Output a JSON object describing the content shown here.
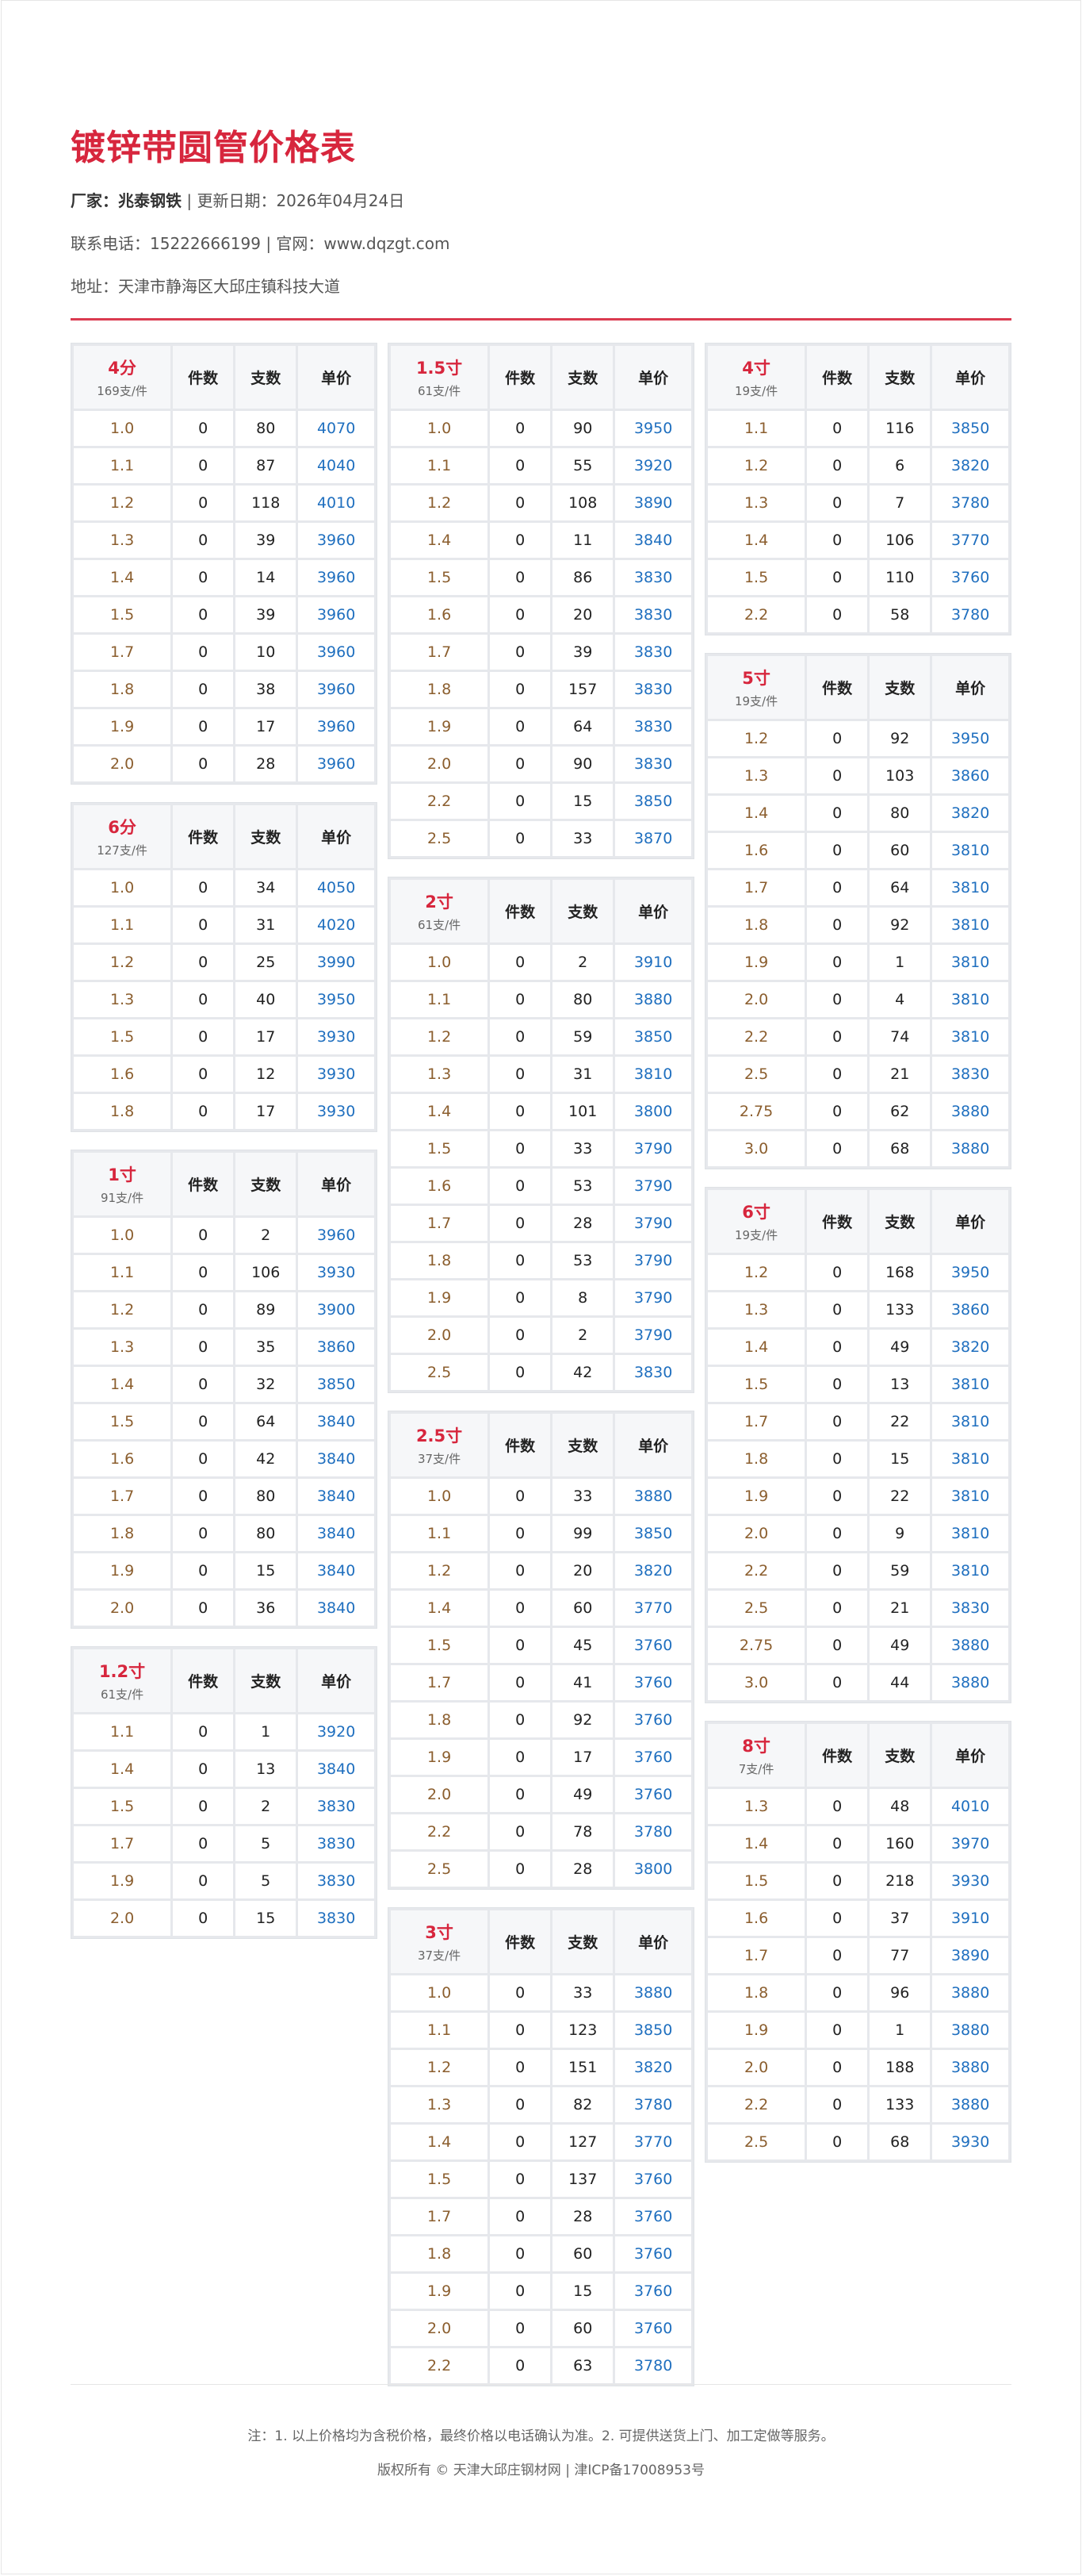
{
  "header": {
    "title": "镀锌带圆管价格表",
    "manufacturer_label": "厂家：",
    "manufacturer": "兆泰钢铁",
    "update": "| 更新日期：2026年04月24日",
    "contact": "联系电话：15222666199 | 官网：www.dqzgt.com",
    "address": "地址：天津市静海区大邱庄镇科技大道"
  },
  "columns_header": [
    "件数",
    "支数",
    "单价"
  ],
  "colors": {
    "accent": "#d7263d",
    "price": "#1f6fbf",
    "thickness": "#8b5e2e"
  },
  "columns": [
    [
      {
        "name": "4分",
        "unit": "169支/件",
        "rows": [
          [
            "1.0",
            "0",
            "80",
            "4070"
          ],
          [
            "1.1",
            "0",
            "87",
            "4040"
          ],
          [
            "1.2",
            "0",
            "118",
            "4010"
          ],
          [
            "1.3",
            "0",
            "39",
            "3960"
          ],
          [
            "1.4",
            "0",
            "14",
            "3960"
          ],
          [
            "1.5",
            "0",
            "39",
            "3960"
          ],
          [
            "1.7",
            "0",
            "10",
            "3960"
          ],
          [
            "1.8",
            "0",
            "38",
            "3960"
          ],
          [
            "1.9",
            "0",
            "17",
            "3960"
          ],
          [
            "2.0",
            "0",
            "28",
            "3960"
          ]
        ]
      },
      {
        "name": "6分",
        "unit": "127支/件",
        "rows": [
          [
            "1.0",
            "0",
            "34",
            "4050"
          ],
          [
            "1.1",
            "0",
            "31",
            "4020"
          ],
          [
            "1.2",
            "0",
            "25",
            "3990"
          ],
          [
            "1.3",
            "0",
            "40",
            "3950"
          ],
          [
            "1.5",
            "0",
            "17",
            "3930"
          ],
          [
            "1.6",
            "0",
            "12",
            "3930"
          ],
          [
            "1.8",
            "0",
            "17",
            "3930"
          ]
        ]
      },
      {
        "name": "1寸",
        "unit": "91支/件",
        "rows": [
          [
            "1.0",
            "0",
            "2",
            "3960"
          ],
          [
            "1.1",
            "0",
            "106",
            "3930"
          ],
          [
            "1.2",
            "0",
            "89",
            "3900"
          ],
          [
            "1.3",
            "0",
            "35",
            "3860"
          ],
          [
            "1.4",
            "0",
            "32",
            "3850"
          ],
          [
            "1.5",
            "0",
            "64",
            "3840"
          ],
          [
            "1.6",
            "0",
            "42",
            "3840"
          ],
          [
            "1.7",
            "0",
            "80",
            "3840"
          ],
          [
            "1.8",
            "0",
            "80",
            "3840"
          ],
          [
            "1.9",
            "0",
            "15",
            "3840"
          ],
          [
            "2.0",
            "0",
            "36",
            "3840"
          ]
        ]
      },
      {
        "name": "1.2寸",
        "unit": "61支/件",
        "rows": [
          [
            "1.1",
            "0",
            "1",
            "3920"
          ],
          [
            "1.4",
            "0",
            "13",
            "3840"
          ],
          [
            "1.5",
            "0",
            "2",
            "3830"
          ],
          [
            "1.7",
            "0",
            "5",
            "3830"
          ],
          [
            "1.9",
            "0",
            "5",
            "3830"
          ],
          [
            "2.0",
            "0",
            "15",
            "3830"
          ]
        ]
      }
    ],
    [
      {
        "name": "1.5寸",
        "unit": "61支/件",
        "rows": [
          [
            "1.0",
            "0",
            "90",
            "3950"
          ],
          [
            "1.1",
            "0",
            "55",
            "3920"
          ],
          [
            "1.2",
            "0",
            "108",
            "3890"
          ],
          [
            "1.4",
            "0",
            "11",
            "3840"
          ],
          [
            "1.5",
            "0",
            "86",
            "3830"
          ],
          [
            "1.6",
            "0",
            "20",
            "3830"
          ],
          [
            "1.7",
            "0",
            "39",
            "3830"
          ],
          [
            "1.8",
            "0",
            "157",
            "3830"
          ],
          [
            "1.9",
            "0",
            "64",
            "3830"
          ],
          [
            "2.0",
            "0",
            "90",
            "3830"
          ],
          [
            "2.2",
            "0",
            "15",
            "3850"
          ],
          [
            "2.5",
            "0",
            "33",
            "3870"
          ]
        ]
      },
      {
        "name": "2寸",
        "unit": "61支/件",
        "rows": [
          [
            "1.0",
            "0",
            "2",
            "3910"
          ],
          [
            "1.1",
            "0",
            "80",
            "3880"
          ],
          [
            "1.2",
            "0",
            "59",
            "3850"
          ],
          [
            "1.3",
            "0",
            "31",
            "3810"
          ],
          [
            "1.4",
            "0",
            "101",
            "3800"
          ],
          [
            "1.5",
            "0",
            "33",
            "3790"
          ],
          [
            "1.6",
            "0",
            "53",
            "3790"
          ],
          [
            "1.7",
            "0",
            "28",
            "3790"
          ],
          [
            "1.8",
            "0",
            "53",
            "3790"
          ],
          [
            "1.9",
            "0",
            "8",
            "3790"
          ],
          [
            "2.0",
            "0",
            "2",
            "3790"
          ],
          [
            "2.5",
            "0",
            "42",
            "3830"
          ]
        ]
      },
      {
        "name": "2.5寸",
        "unit": "37支/件",
        "rows": [
          [
            "1.0",
            "0",
            "33",
            "3880"
          ],
          [
            "1.1",
            "0",
            "99",
            "3850"
          ],
          [
            "1.2",
            "0",
            "20",
            "3820"
          ],
          [
            "1.4",
            "0",
            "60",
            "3770"
          ],
          [
            "1.5",
            "0",
            "45",
            "3760"
          ],
          [
            "1.7",
            "0",
            "41",
            "3760"
          ],
          [
            "1.8",
            "0",
            "92",
            "3760"
          ],
          [
            "1.9",
            "0",
            "17",
            "3760"
          ],
          [
            "2.0",
            "0",
            "49",
            "3760"
          ],
          [
            "2.2",
            "0",
            "78",
            "3780"
          ],
          [
            "2.5",
            "0",
            "28",
            "3800"
          ]
        ]
      },
      {
        "name": "3寸",
        "unit": "37支/件",
        "rows": [
          [
            "1.0",
            "0",
            "33",
            "3880"
          ],
          [
            "1.1",
            "0",
            "123",
            "3850"
          ],
          [
            "1.2",
            "0",
            "151",
            "3820"
          ],
          [
            "1.3",
            "0",
            "82",
            "3780"
          ],
          [
            "1.4",
            "0",
            "127",
            "3770"
          ],
          [
            "1.5",
            "0",
            "137",
            "3760"
          ],
          [
            "1.7",
            "0",
            "28",
            "3760"
          ],
          [
            "1.8",
            "0",
            "60",
            "3760"
          ],
          [
            "1.9",
            "0",
            "15",
            "3760"
          ],
          [
            "2.0",
            "0",
            "60",
            "3760"
          ],
          [
            "2.2",
            "0",
            "63",
            "3780"
          ]
        ]
      }
    ],
    [
      {
        "name": "4寸",
        "unit": "19支/件",
        "rows": [
          [
            "1.1",
            "0",
            "116",
            "3850"
          ],
          [
            "1.2",
            "0",
            "6",
            "3820"
          ],
          [
            "1.3",
            "0",
            "7",
            "3780"
          ],
          [
            "1.4",
            "0",
            "106",
            "3770"
          ],
          [
            "1.5",
            "0",
            "110",
            "3760"
          ],
          [
            "2.2",
            "0",
            "58",
            "3780"
          ]
        ]
      },
      {
        "name": "5寸",
        "unit": "19支/件",
        "rows": [
          [
            "1.2",
            "0",
            "92",
            "3950"
          ],
          [
            "1.3",
            "0",
            "103",
            "3860"
          ],
          [
            "1.4",
            "0",
            "80",
            "3820"
          ],
          [
            "1.6",
            "0",
            "60",
            "3810"
          ],
          [
            "1.7",
            "0",
            "64",
            "3810"
          ],
          [
            "1.8",
            "0",
            "92",
            "3810"
          ],
          [
            "1.9",
            "0",
            "1",
            "3810"
          ],
          [
            "2.0",
            "0",
            "4",
            "3810"
          ],
          [
            "2.2",
            "0",
            "74",
            "3810"
          ],
          [
            "2.5",
            "0",
            "21",
            "3830"
          ],
          [
            "2.75",
            "0",
            "62",
            "3880"
          ],
          [
            "3.0",
            "0",
            "68",
            "3880"
          ]
        ]
      },
      {
        "name": "6寸",
        "unit": "19支/件",
        "rows": [
          [
            "1.2",
            "0",
            "168",
            "3950"
          ],
          [
            "1.3",
            "0",
            "133",
            "3860"
          ],
          [
            "1.4",
            "0",
            "49",
            "3820"
          ],
          [
            "1.5",
            "0",
            "13",
            "3810"
          ],
          [
            "1.7",
            "0",
            "22",
            "3810"
          ],
          [
            "1.8",
            "0",
            "15",
            "3810"
          ],
          [
            "1.9",
            "0",
            "22",
            "3810"
          ],
          [
            "2.0",
            "0",
            "9",
            "3810"
          ],
          [
            "2.2",
            "0",
            "59",
            "3810"
          ],
          [
            "2.5",
            "0",
            "21",
            "3830"
          ],
          [
            "2.75",
            "0",
            "49",
            "3880"
          ],
          [
            "3.0",
            "0",
            "44",
            "3880"
          ]
        ]
      },
      {
        "name": "8寸",
        "unit": "7支/件",
        "rows": [
          [
            "1.3",
            "0",
            "48",
            "4010"
          ],
          [
            "1.4",
            "0",
            "160",
            "3970"
          ],
          [
            "1.5",
            "0",
            "218",
            "3930"
          ],
          [
            "1.6",
            "0",
            "37",
            "3910"
          ],
          [
            "1.7",
            "0",
            "77",
            "3890"
          ],
          [
            "1.8",
            "0",
            "96",
            "3880"
          ],
          [
            "1.9",
            "0",
            "1",
            "3880"
          ],
          [
            "2.0",
            "0",
            "188",
            "3880"
          ],
          [
            "2.2",
            "0",
            "133",
            "3880"
          ],
          [
            "2.5",
            "0",
            "68",
            "3930"
          ]
        ]
      }
    ]
  ],
  "footer": {
    "note": "注：1. 以上价格均为含税价格，最终价格以电话确认为准。2. 可提供送货上门、加工定做等服务。",
    "copyright": "版权所有 © 天津大邱庄钢材网 | 津ICP备17008953号"
  }
}
